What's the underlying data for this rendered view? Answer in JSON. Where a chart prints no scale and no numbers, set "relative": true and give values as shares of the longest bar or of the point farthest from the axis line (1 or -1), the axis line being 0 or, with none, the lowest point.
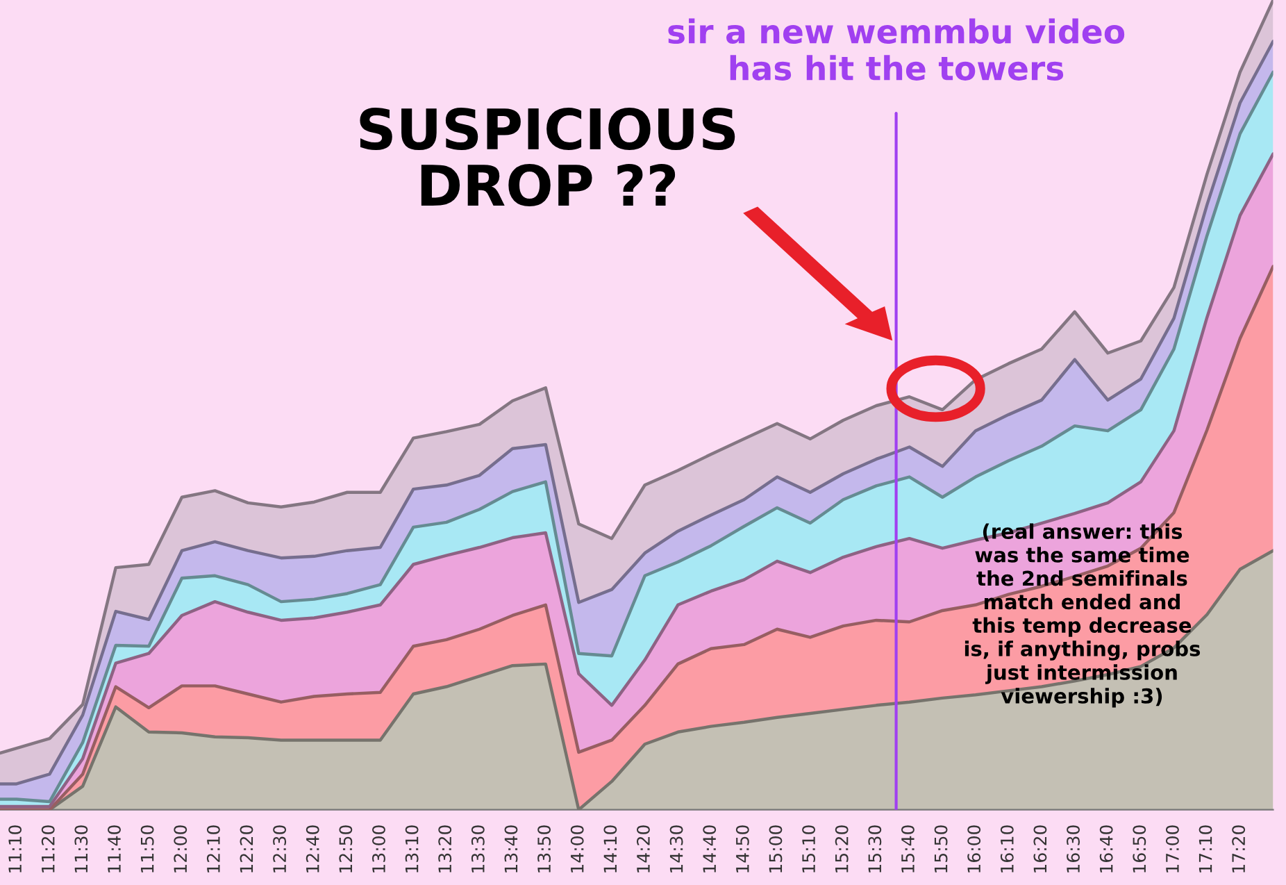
{
  "chart_data": {
    "type": "area",
    "stacked": true,
    "relative": true,
    "x": [
      11.0833,
      11.1667,
      11.3333,
      11.5,
      11.6667,
      11.8333,
      12.0,
      12.1667,
      12.3333,
      12.5,
      12.6667,
      12.8333,
      13.0,
      13.1667,
      13.3333,
      13.5,
      13.6667,
      13.8333,
      14.0,
      14.1667,
      14.3333,
      14.5,
      14.6667,
      14.8333,
      15.0,
      15.1667,
      15.3333,
      15.5,
      15.6667,
      15.8333,
      16.0,
      16.1667,
      16.3333,
      16.5,
      16.6667,
      16.8333,
      17.0,
      17.1667,
      17.3333,
      17.5
    ],
    "xlim": [
      11.0833,
      17.5
    ],
    "xticks": [
      {
        "value": 11.1667,
        "label": "11:10"
      },
      {
        "value": 11.3333,
        "label": "11:20"
      },
      {
        "value": 11.5,
        "label": "11:30"
      },
      {
        "value": 11.6667,
        "label": "11:40"
      },
      {
        "value": 11.8333,
        "label": "11:50"
      },
      {
        "value": 12.0,
        "label": "12:00"
      },
      {
        "value": 12.1667,
        "label": "12:10"
      },
      {
        "value": 12.3333,
        "label": "12:20"
      },
      {
        "value": 12.5,
        "label": "12:30"
      },
      {
        "value": 12.6667,
        "label": "12:40"
      },
      {
        "value": 12.8333,
        "label": "12:50"
      },
      {
        "value": 13.0,
        "label": "13:00"
      },
      {
        "value": 13.1667,
        "label": "13:10"
      },
      {
        "value": 13.3333,
        "label": "13:20"
      },
      {
        "value": 13.5,
        "label": "13:30"
      },
      {
        "value": 13.6667,
        "label": "13:40"
      },
      {
        "value": 13.8333,
        "label": "13:50"
      },
      {
        "value": 14.0,
        "label": "14:00"
      },
      {
        "value": 14.1667,
        "label": "14:10"
      },
      {
        "value": 14.3333,
        "label": "14:20"
      },
      {
        "value": 14.5,
        "label": "14:30"
      },
      {
        "value": 14.6667,
        "label": "14:40"
      },
      {
        "value": 14.8333,
        "label": "14:50"
      },
      {
        "value": 15.0,
        "label": "15:00"
      },
      {
        "value": 15.1667,
        "label": "15:10"
      },
      {
        "value": 15.3333,
        "label": "15:20"
      },
      {
        "value": 15.5,
        "label": "15:30"
      },
      {
        "value": 15.6667,
        "label": "15:40"
      },
      {
        "value": 15.8333,
        "label": "15:50"
      },
      {
        "value": 16.0,
        "label": "16:00"
      },
      {
        "value": 16.1667,
        "label": "16:10"
      },
      {
        "value": 16.3333,
        "label": "16:20"
      },
      {
        "value": 16.5,
        "label": "16:30"
      },
      {
        "value": 16.6667,
        "label": "16:40"
      },
      {
        "value": 16.8333,
        "label": "16:50"
      },
      {
        "value": 17.0,
        "label": "17:00"
      },
      {
        "value": 17.1667,
        "label": "17:10"
      },
      {
        "value": 17.3333,
        "label": "17:20"
      }
    ],
    "tick_labels": "x",
    "series": [
      {
        "color": "#c4c0b4",
        "values": [
          0,
          0,
          0,
          0.029,
          0.127,
          0.096,
          0.095,
          0.09,
          0.089,
          0.086,
          0.086,
          0.086,
          0.086,
          0.143,
          0.152,
          0.165,
          0.178,
          0.18,
          0,
          0.035,
          0.081,
          0.096,
          0.103,
          0.108,
          0.114,
          0.119,
          0.124,
          0.129,
          0.133,
          0.138,
          0.142,
          0.147,
          0.152,
          0.159,
          0.167,
          0.177,
          0.2,
          0.241,
          0.297,
          0.32
        ]
      },
      {
        "color": "#fc9ca4",
        "values": [
          0,
          0,
          0,
          0.015,
          0.025,
          0.03,
          0.058,
          0.063,
          0.054,
          0.047,
          0.054,
          0.057,
          0.059,
          0.059,
          0.058,
          0.058,
          0.062,
          0.073,
          0.071,
          0.051,
          0.048,
          0.084,
          0.096,
          0.096,
          0.109,
          0.094,
          0.103,
          0.105,
          0.099,
          0.108,
          0.111,
          0.119,
          0.124,
          0.129,
          0.134,
          0.146,
          0.167,
          0.228,
          0.285,
          0.351
        ]
      },
      {
        "color": "#eca4dc",
        "values": [
          0.004,
          0.004,
          0.004,
          0.019,
          0.029,
          0.067,
          0.087,
          0.104,
          0.101,
          0.101,
          0.097,
          0.101,
          0.108,
          0.101,
          0.104,
          0.101,
          0.096,
          0.089,
          0.097,
          0.043,
          0.056,
          0.073,
          0.071,
          0.08,
          0.084,
          0.08,
          0.085,
          0.091,
          0.103,
          0.077,
          0.08,
          0.076,
          0.078,
          0.078,
          0.078,
          0.082,
          0.101,
          0.139,
          0.152,
          0.139
        ]
      },
      {
        "color": "#a8e8f4",
        "values": [
          0.009,
          0.009,
          0.006,
          0.02,
          0.022,
          0.009,
          0.046,
          0.032,
          0.034,
          0.023,
          0.023,
          0.023,
          0.025,
          0.046,
          0.041,
          0.047,
          0.057,
          0.063,
          0.025,
          0.061,
          0.104,
          0.053,
          0.056,
          0.066,
          0.066,
          0.061,
          0.071,
          0.075,
          0.076,
          0.063,
          0.078,
          0.089,
          0.095,
          0.108,
          0.089,
          0.089,
          0.101,
          0.101,
          0.101,
          0.101
        ]
      },
      {
        "color": "#c4b8ec",
        "values": [
          0.019,
          0.019,
          0.034,
          0.034,
          0.042,
          0.033,
          0.034,
          0.042,
          0.042,
          0.054,
          0.053,
          0.053,
          0.046,
          0.047,
          0.046,
          0.042,
          0.053,
          0.046,
          0.063,
          0.082,
          0.028,
          0.038,
          0.038,
          0.033,
          0.038,
          0.038,
          0.032,
          0.033,
          0.037,
          0.038,
          0.057,
          0.057,
          0.057,
          0.082,
          0.038,
          0.038,
          0.038,
          0.038,
          0.038,
          0.038
        ]
      },
      {
        "color": "#dcc4d8",
        "values": [
          0.038,
          0.044,
          0.044,
          0.013,
          0.054,
          0.068,
          0.066,
          0.063,
          0.059,
          0.063,
          0.067,
          0.072,
          0.068,
          0.063,
          0.066,
          0.063,
          0.059,
          0.07,
          0.097,
          0.063,
          0.084,
          0.075,
          0.075,
          0.075,
          0.066,
          0.066,
          0.066,
          0.066,
          0.062,
          0.07,
          0.063,
          0.063,
          0.063,
          0.059,
          0.058,
          0.047,
          0.038,
          0.038,
          0.038,
          0.051
        ]
      }
    ],
    "ref_lines": [
      {
        "axis": "x",
        "value": 15.6,
        "color": "#a040f0",
        "label": "sir a new wemmbu video\nhas hit the towers"
      }
    ],
    "annotations": [
      "SUSPICIOUS\nDROP ??",
      "(real answer: this\nwas the same time\nthe 2nd semifinals\nmatch ended and\nthis temp decrease\nis, if anything, probs\njust intermission\nviewership :3)"
    ]
  }
}
